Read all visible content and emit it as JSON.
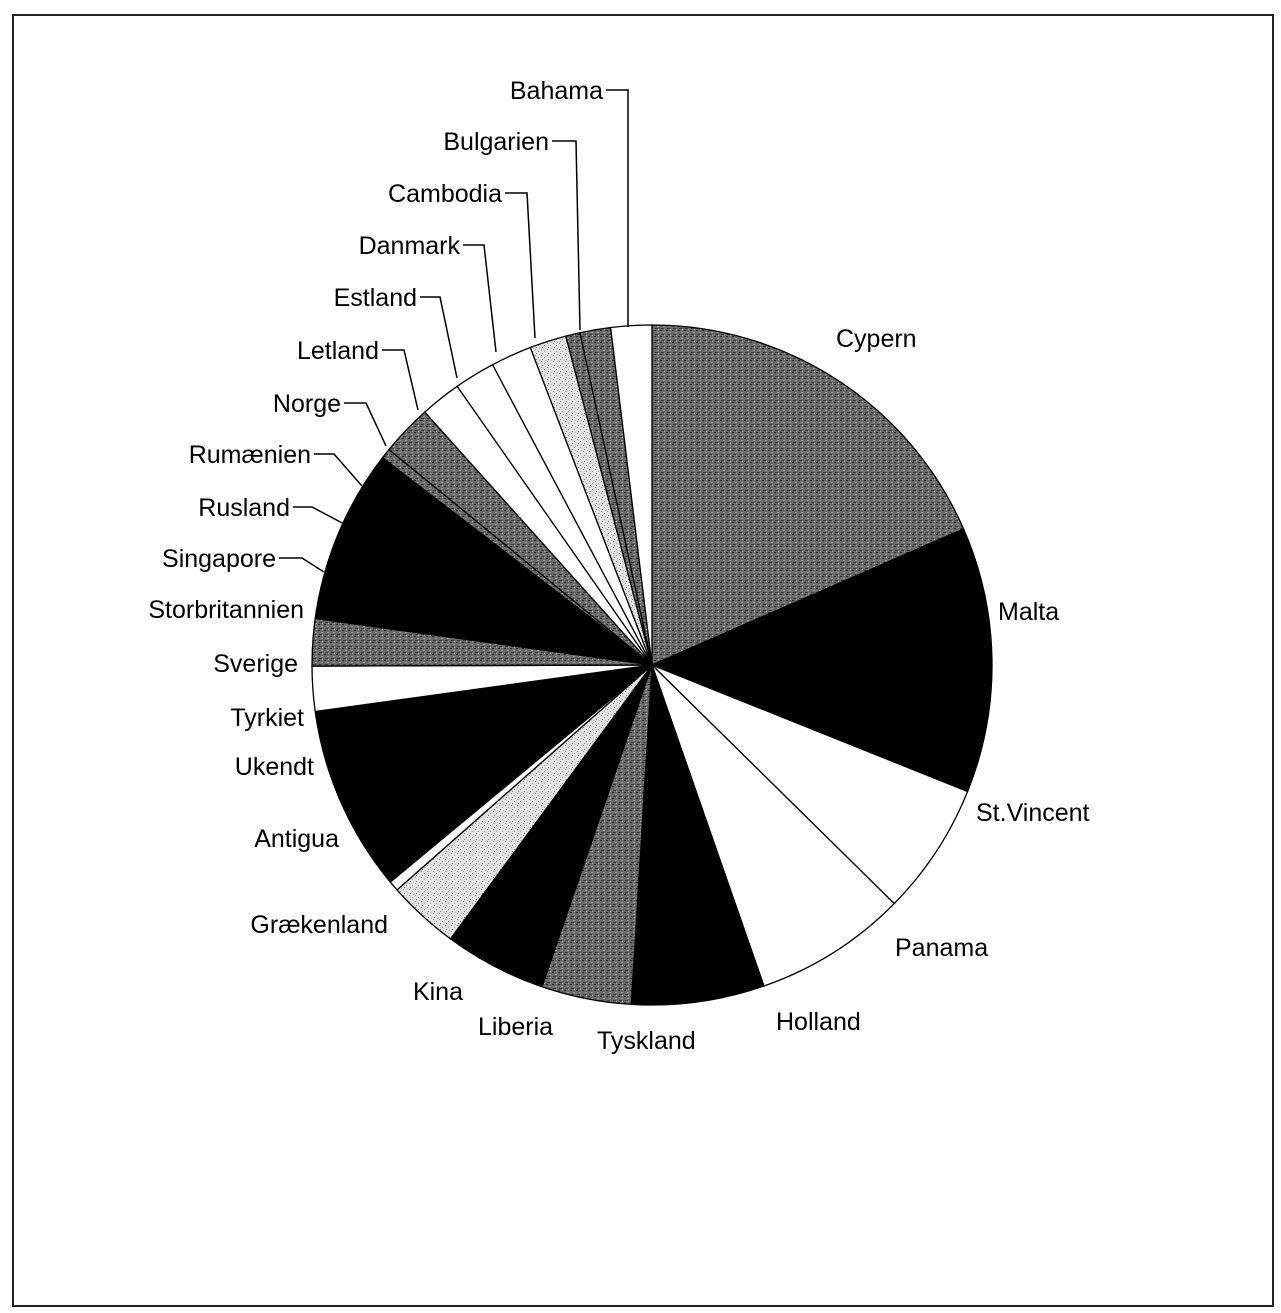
{
  "chart_data": {
    "type": "pie",
    "title": "",
    "start": "12 o'clock",
    "direction": "clockwise",
    "slices": [
      {
        "label": "Cypern",
        "value": 19.0,
        "fill": "dark-dots"
      },
      {
        "label": "Malta",
        "value": 13.0,
        "fill": "black"
      },
      {
        "label": "St.Vincent",
        "value": 6.5,
        "fill": "white"
      },
      {
        "label": "Panama",
        "value": 7.5,
        "fill": "white"
      },
      {
        "label": "Holland",
        "value": 6.5,
        "fill": "black"
      },
      {
        "label": "Tyskland",
        "value": 4.4,
        "fill": "dark-dots"
      },
      {
        "label": "Liberia",
        "value": 5.0,
        "fill": "black"
      },
      {
        "label": "Kina",
        "value": 3.5,
        "fill": "light-dots"
      },
      {
        "label": "Grækenland",
        "value": 0.5,
        "fill": "white"
      },
      {
        "label": "Antigua",
        "value": 9.1,
        "fill": "black"
      },
      {
        "label": "Ukendt",
        "value": 2.2,
        "fill": "white"
      },
      {
        "label": "Tyrkiet",
        "value": 2.3,
        "fill": "dark-dots"
      },
      {
        "label": "Sverige",
        "value": 0.4,
        "fill": "black"
      },
      {
        "label": "Storbritannien",
        "value": 1.1,
        "fill": "black"
      },
      {
        "label": "Singapore",
        "value": 7.0,
        "fill": "black"
      },
      {
        "label": "Rusland",
        "value": 0.5,
        "fill": "dark-dots"
      },
      {
        "label": "Rumænien",
        "value": 2.5,
        "fill": "dark-dots"
      },
      {
        "label": "Norge",
        "value": 2.0,
        "fill": "white"
      },
      {
        "label": "Letland",
        "value": 2.0,
        "fill": "white"
      },
      {
        "label": "Estland",
        "value": 2.0,
        "fill": "white"
      },
      {
        "label": "Danmark",
        "value": 1.8,
        "fill": "light-dots"
      },
      {
        "label": "Cambodia",
        "value": 0.7,
        "fill": "dark-dots"
      },
      {
        "label": "Bulgarien",
        "value": 1.5,
        "fill": "dark-dots"
      },
      {
        "label": "Bahama",
        "value": 2.0,
        "fill": "white"
      }
    ]
  }
}
